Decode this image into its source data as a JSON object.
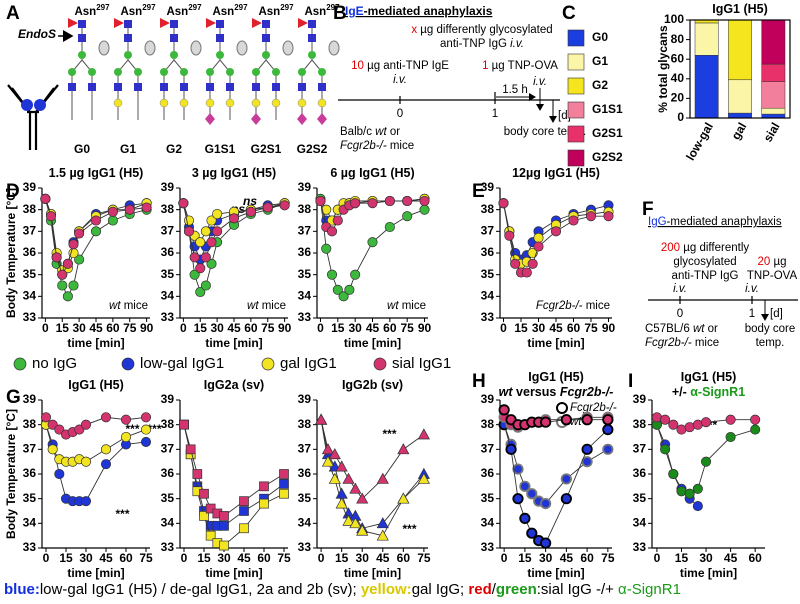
{
  "panel_labels": [
    "A",
    "B",
    "C",
    "D",
    "E",
    "F",
    "G",
    "H",
    "I"
  ],
  "panel_a": {
    "enzyme": "EndoS",
    "glycans": [
      {
        "name": "G0",
        "site": "Asn",
        "site_sup": "297"
      },
      {
        "name": "G1",
        "site": "Asn",
        "site_sup": "297"
      },
      {
        "name": "G2",
        "site": "Asn",
        "site_sup": "297"
      },
      {
        "name": "G1S1",
        "site": "Asn",
        "site_sup": "297"
      },
      {
        "name": "G2S1",
        "site": "Asn",
        "site_sup": "297"
      },
      {
        "name": "G2S2",
        "site": "Asn",
        "site_sup": "297"
      }
    ]
  },
  "panel_b": {
    "title_ab": "IgE",
    "title_rest": "-mediated anaphylaxis",
    "igg_dose": "x",
    "igg_text": " µg differently glycosylated",
    "igg_line2": "anti-TNP IgG ",
    "route": "i.v.",
    "ige_dose": "10",
    "ige_text": " µg anti-TNP IgE",
    "ova_dose": "1",
    "ova_text": " µg TNP-OVA",
    "interval": "1.5 h",
    "day0": "0",
    "day1": "1",
    "unit": "[d]",
    "mice_line1": "Balb/c ",
    "mice_wt": "wt",
    "mice_or": " or",
    "mice_ko": "Fcgr2b-/-",
    "mice_rest": " mice",
    "readout": "body core temp."
  },
  "panel_f": {
    "title_ab": "IgG",
    "title_rest": "-mediated anaphylaxis",
    "igg_dose": "200",
    "igg_text": " µg differently",
    "igg_line2": "glycosylated",
    "igg_line3": "anti-TNP IgG",
    "route": "i.v.",
    "ova_dose": "20",
    "ova_text": " µg",
    "ova_line2": "TNP-OVA",
    "day0": "0",
    "day1": "1",
    "unit": "[d]",
    "mice_line1": "C57BL/6 ",
    "mice_wt": "wt",
    "mice_or": " or",
    "mice_ko": "Fcgr2b-/-",
    "mice_rest": " mice",
    "readout_1": "body core",
    "readout_2": "temp."
  },
  "legend": [
    {
      "name": "no IgG",
      "color": "#3cb83c"
    },
    {
      "name": "low-gal IgG1",
      "color": "#1f35d6"
    },
    {
      "name": "gal IgG1",
      "color": "#f2e422"
    },
    {
      "name": "sial IgG1",
      "color": "#d3336e"
    }
  ],
  "caption": {
    "blue_key": "blue:",
    "blue_text": "low-gal IgG1 (H5) / de-gal IgG1, 2a and 2b (sv); ",
    "yellow_key": "yellow:",
    "yellow_text": "gal IgG; ",
    "red_key": "red",
    "slash": "/",
    "green_key": "green",
    "sial_text": ":sial IgG -/+ ",
    "antibody": "α-SignR1"
  },
  "chart_data": [
    {
      "type": "stacked_bar",
      "title": "IgG1 (H5)",
      "y_label": "% total glycans",
      "categories": [
        "low-gal",
        "gal",
        "sial"
      ],
      "ylim": [
        0,
        100
      ],
      "yticks": [
        0,
        20,
        40,
        60,
        80,
        100
      ],
      "series": [
        {
          "name": "G0",
          "color": "#1a3ee0",
          "values": [
            64,
            5,
            4
          ]
        },
        {
          "name": "G1",
          "color": "#fbf5a8",
          "values": [
            33,
            34,
            6
          ]
        },
        {
          "name": "G2",
          "color": "#f4e51e",
          "values": [
            3,
            61,
            0
          ]
        },
        {
          "name": "G1S1",
          "color": "#f2809c",
          "values": [
            0,
            0,
            27
          ]
        },
        {
          "name": "G2S1",
          "color": "#e8306a",
          "values": [
            0,
            0,
            18
          ]
        },
        {
          "name": "G2S2",
          "color": "#c0005a",
          "values": [
            0,
            0,
            45
          ]
        }
      ]
    },
    {
      "type": "line",
      "title": "1.5 µg IgG1 (H5)",
      "y_label": "Body Temperature [°C]",
      "x_label": "time [min]",
      "note_em": "wt",
      "note": " mice",
      "marker": "circle",
      "x": [
        0,
        5,
        10,
        15,
        20,
        25,
        30,
        45,
        60,
        75,
        90
      ],
      "xlim": [
        -3,
        93
      ],
      "xticks": [
        0,
        15,
        30,
        45,
        60,
        75,
        90
      ],
      "ylim": [
        33,
        39
      ],
      "yticks": [
        33,
        34,
        35,
        36,
        37,
        38,
        39
      ],
      "series": [
        {
          "color": "#3cb83c",
          "values": [
            38.5,
            37.5,
            35.5,
            34.5,
            34.0,
            34.5,
            35.7,
            37.0,
            37.5,
            37.8,
            38.0
          ]
        },
        {
          "color": "#1f35d6",
          "values": [
            38.5,
            37.8,
            35.8,
            35.0,
            35.5,
            36.5,
            37.0,
            37.8,
            38.0,
            38.2,
            38.3
          ]
        },
        {
          "color": "#f2e422",
          "values": [
            38.5,
            37.8,
            36.0,
            35.2,
            35.3,
            36.0,
            37.0,
            37.7,
            38.0,
            38.0,
            38.3
          ]
        },
        {
          "color": "#d3336e",
          "values": [
            38.5,
            37.7,
            35.8,
            35.0,
            35.5,
            36.4,
            36.9,
            37.5,
            37.9,
            38.0,
            38.1
          ]
        }
      ]
    },
    {
      "type": "line",
      "title": "3 µg IgG1 (H5)",
      "x_label": "time [min]",
      "note_em": "wt",
      "note": " mice",
      "marker": "circle",
      "annotations": [
        "ns",
        "ns"
      ],
      "x": [
        0,
        5,
        10,
        15,
        20,
        25,
        30,
        45,
        60,
        75,
        90
      ],
      "xlim": [
        -3,
        93
      ],
      "xticks": [
        0,
        15,
        30,
        45,
        60,
        75,
        90
      ],
      "ylim": [
        33,
        39
      ],
      "yticks": [
        33,
        34,
        35,
        36,
        37,
        38,
        39
      ],
      "series": [
        {
          "color": "#3cb83c",
          "values": [
            38.3,
            37.0,
            35.0,
            34.2,
            34.5,
            35.5,
            36.5,
            37.3,
            37.8,
            38.0,
            38.3
          ]
        },
        {
          "color": "#1f35d6",
          "values": [
            38.3,
            37.2,
            36.3,
            35.7,
            36.3,
            37.0,
            37.5,
            37.8,
            38.0,
            38.2,
            38.3
          ]
        },
        {
          "color": "#f2e422",
          "values": [
            38.3,
            37.5,
            36.8,
            36.5,
            37.0,
            37.5,
            37.8,
            37.9,
            38.0,
            38.1,
            38.3
          ]
        },
        {
          "color": "#d3336e",
          "values": [
            38.3,
            37.0,
            35.8,
            35.3,
            35.8,
            36.5,
            37.0,
            37.6,
            37.9,
            38.1,
            38.2
          ]
        }
      ]
    },
    {
      "type": "line",
      "title": "6 µg IgG1 (H5)",
      "x_label": "time [min]",
      "note_em": "wt",
      "note": " mice",
      "marker": "circle",
      "x": [
        0,
        5,
        10,
        15,
        20,
        25,
        30,
        45,
        60,
        75,
        90
      ],
      "xlim": [
        -3,
        93
      ],
      "xticks": [
        0,
        15,
        30,
        45,
        60,
        75,
        90
      ],
      "ylim": [
        33,
        39
      ],
      "yticks": [
        33,
        34,
        35,
        36,
        37,
        38,
        39
      ],
      "series": [
        {
          "color": "#3cb83c",
          "values": [
            38.5,
            36.2,
            35.0,
            34.3,
            34.0,
            34.3,
            35.0,
            36.5,
            37.2,
            37.7,
            38.0
          ]
        },
        {
          "color": "#1f35d6",
          "values": [
            38.4,
            37.5,
            37.5,
            38.0,
            38.2,
            38.3,
            38.3,
            38.4,
            38.4,
            38.4,
            38.5
          ]
        },
        {
          "color": "#f2e422",
          "values": [
            38.4,
            38.0,
            37.5,
            38.0,
            38.3,
            38.3,
            38.4,
            38.4,
            38.4,
            38.4,
            38.5
          ]
        },
        {
          "color": "#d3336e",
          "values": [
            38.4,
            37.2,
            37.0,
            37.5,
            38.0,
            38.2,
            38.3,
            38.3,
            38.4,
            38.4,
            38.4
          ]
        }
      ]
    },
    {
      "type": "line",
      "title": "12µg IgG1 (H5)",
      "x_label": "time [min]",
      "note_em": "Fcgr2b-/-",
      "note": " mice",
      "marker": "circle",
      "x": [
        0,
        5,
        10,
        15,
        20,
        25,
        30,
        45,
        60,
        75,
        90
      ],
      "xlim": [
        -3,
        93
      ],
      "xticks": [
        0,
        15,
        30,
        45,
        60,
        75,
        90
      ],
      "ylim": [
        33,
        39
      ],
      "yticks": [
        33,
        34,
        35,
        36,
        37,
        38,
        39
      ],
      "series": [
        {
          "color": "#1f35d6",
          "values": [
            38.3,
            37.0,
            36.0,
            35.7,
            35.9,
            36.5,
            37.0,
            37.5,
            37.8,
            38.0,
            38.2
          ]
        },
        {
          "color": "#f2e422",
          "values": [
            38.3,
            37.0,
            35.7,
            35.5,
            35.6,
            36.0,
            36.7,
            37.3,
            37.7,
            37.8,
            37.9
          ]
        },
        {
          "color": "#d3336e",
          "values": [
            38.3,
            36.8,
            35.5,
            35.1,
            35.1,
            35.5,
            36.3,
            37.0,
            37.5,
            37.7,
            37.7
          ]
        }
      ]
    },
    {
      "type": "line",
      "title": "IgG1 (H5)",
      "y_label": "Body Temperature [°C]",
      "x_label": "time [min]",
      "marker": "circle",
      "annotations": [
        "***",
        "***",
        "***"
      ],
      "x": [
        0,
        5,
        10,
        15,
        20,
        25,
        30,
        45,
        60,
        75
      ],
      "xlim": [
        -3,
        78
      ],
      "xticks": [
        0,
        15,
        30,
        45,
        60,
        75
      ],
      "ylim": [
        33,
        39
      ],
      "yticks": [
        33,
        34,
        35,
        36,
        37,
        38,
        39
      ],
      "series": [
        {
          "color": "#1f35d6",
          "values": [
            38.0,
            37.2,
            36.0,
            35.0,
            34.9,
            34.9,
            34.9,
            36.4,
            37.2,
            37.3
          ]
        },
        {
          "color": "#f2e422",
          "values": [
            38.0,
            37.0,
            36.6,
            36.5,
            36.5,
            36.6,
            36.5,
            37.0,
            37.5,
            37.8
          ]
        },
        {
          "color": "#d3336e",
          "values": [
            38.3,
            38.0,
            37.8,
            37.6,
            37.7,
            37.8,
            38.0,
            38.3,
            38.2,
            38.3
          ]
        }
      ]
    },
    {
      "type": "line",
      "title": "IgG2a (sv)",
      "x_label": "time [min]",
      "marker": "square",
      "x": [
        0,
        5,
        10,
        15,
        20,
        25,
        30,
        45,
        60,
        75
      ],
      "xlim": [
        -3,
        78
      ],
      "xticks": [
        0,
        15,
        30,
        45,
        60,
        75
      ],
      "ylim": [
        33,
        39
      ],
      "yticks": [
        33,
        34,
        35,
        36,
        37,
        38,
        39
      ],
      "series": [
        {
          "color": "#1f35d6",
          "values": [
            38.0,
            36.8,
            35.5,
            34.5,
            33.9,
            33.9,
            33.9,
            34.5,
            35.0,
            35.6
          ]
        },
        {
          "color": "#f2e422",
          "values": [
            38.0,
            36.8,
            35.3,
            34.3,
            33.5,
            33.2,
            33.1,
            33.8,
            34.8,
            35.2
          ]
        },
        {
          "color": "#d3336e",
          "values": [
            38.0,
            37.0,
            36.0,
            35.2,
            34.6,
            34.4,
            34.3,
            34.9,
            35.5,
            36.0
          ]
        }
      ]
    },
    {
      "type": "line",
      "title": "IgG2b (sv)",
      "x_label": "time [min]",
      "marker": "triangle",
      "annotations": [
        "***",
        "***"
      ],
      "x": [
        0,
        5,
        10,
        15,
        20,
        25,
        30,
        45,
        60,
        75
      ],
      "xlim": [
        -3,
        78
      ],
      "xticks": [
        0,
        15,
        30,
        45,
        60,
        75
      ],
      "ylim": [
        33,
        39
      ],
      "yticks": [
        33,
        34,
        35,
        36,
        37,
        38,
        39
      ],
      "series": [
        {
          "color": "#1f35d6",
          "values": [
            38.2,
            36.8,
            36.3,
            35.2,
            34.4,
            34.3,
            33.8,
            34.0,
            35.0,
            36.0
          ]
        },
        {
          "color": "#f2e422",
          "values": [
            38.2,
            36.5,
            35.8,
            34.8,
            34.1,
            34.0,
            33.7,
            33.5,
            35.0,
            35.8
          ]
        },
        {
          "color": "#d3336e",
          "values": [
            38.2,
            37.0,
            36.8,
            36.3,
            35.8,
            35.4,
            35.0,
            35.8,
            37.0,
            37.6
          ]
        }
      ]
    },
    {
      "type": "line",
      "title": "IgG1 (H5)",
      "subtitle_a": "wt",
      "subtitle_b": " versus ",
      "subtitle_c": "Fcgr2b-/-",
      "x_label": "time [min]",
      "marker": "circle",
      "legend": [
        {
          "name": "Fcgr2b-/-",
          "edge": "#000000"
        },
        {
          "name": "wt",
          "edge": "#777777"
        }
      ],
      "x": [
        0,
        5,
        10,
        15,
        20,
        25,
        30,
        45,
        60,
        75
      ],
      "xlim": [
        -3,
        78
      ],
      "xticks": [
        0,
        15,
        30,
        45,
        60,
        75
      ],
      "ylim": [
        33,
        39
      ],
      "yticks": [
        33,
        34,
        35,
        36,
        37,
        38,
        39
      ],
      "series": [
        {
          "color": "#1f35d6",
          "edge": "#777777",
          "values": [
            38.0,
            37.2,
            36.2,
            35.5,
            35.2,
            34.9,
            34.8,
            35.8,
            36.5,
            37.0
          ]
        },
        {
          "color": "#1f35d6",
          "edge": "#000000",
          "values": [
            38.0,
            37.0,
            35.0,
            34.2,
            33.6,
            33.3,
            33.2,
            35.0,
            37.0,
            37.8
          ]
        },
        {
          "color": "#d3336e",
          "edge": "#777777",
          "values": [
            38.3,
            38.0,
            37.9,
            38.0,
            38.1,
            38.1,
            38.2,
            38.2,
            38.3,
            38.3
          ]
        },
        {
          "color": "#d3336e",
          "edge": "#000000",
          "values": [
            38.6,
            38.2,
            38.0,
            38.0,
            38.1,
            38.1,
            38.1,
            38.2,
            38.2,
            38.2
          ]
        }
      ]
    },
    {
      "type": "line",
      "title": "IgG1 (H5)",
      "subtitle_a": "+/- ",
      "subtitle_b": "α-SignR1",
      "x_label": "time [min]",
      "marker": "circle",
      "annotations": [
        "**"
      ],
      "x": [
        0,
        5,
        10,
        15,
        20,
        25,
        30,
        45,
        60
      ],
      "xlim": [
        -3,
        66
      ],
      "xticks": [
        0,
        15,
        30,
        45,
        60
      ],
      "ylim": [
        33,
        39
      ],
      "yticks": [
        33,
        34,
        35,
        36,
        37,
        38,
        39
      ],
      "series": [
        {
          "color": "#1f35d6",
          "values": [
            38.0,
            37.2,
            36.0,
            35.4,
            35.0,
            34.7,
            null,
            null,
            null
          ]
        },
        {
          "color": "#1a8a1a",
          "values": [
            38.0,
            37.0,
            36.0,
            35.3,
            35.2,
            35.4,
            36.5,
            37.5,
            37.8
          ]
        },
        {
          "color": "#d3336e",
          "values": [
            38.3,
            38.2,
            38.0,
            37.8,
            37.9,
            38.0,
            38.1,
            38.2,
            38.2
          ]
        }
      ]
    }
  ]
}
